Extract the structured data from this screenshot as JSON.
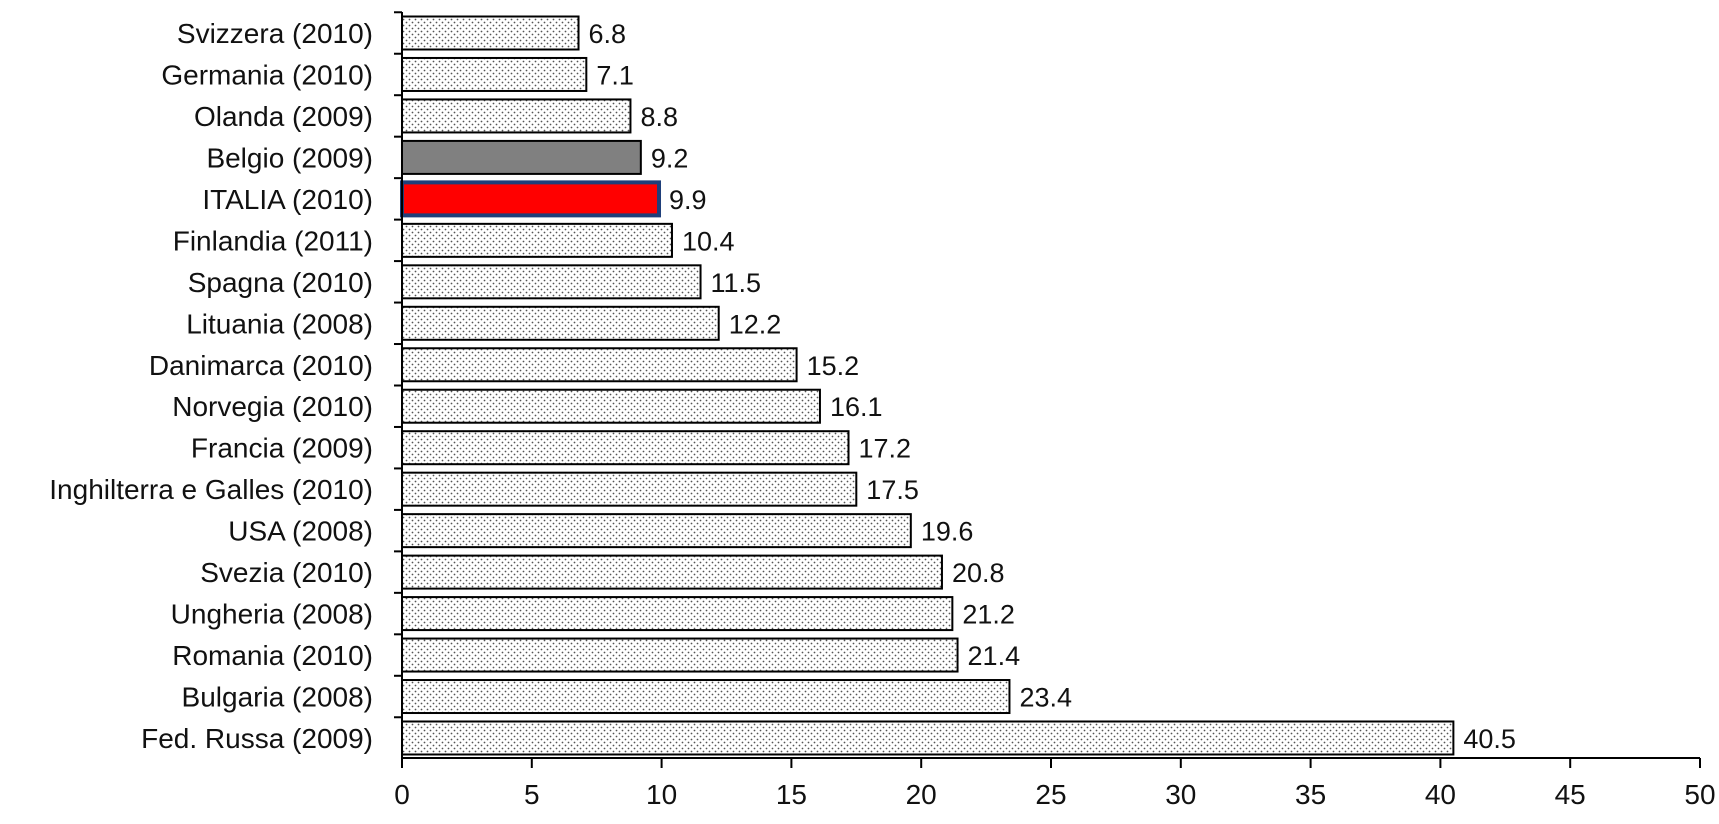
{
  "chart_data": {
    "type": "bar",
    "orientation": "horizontal",
    "title": "",
    "xlabel": "",
    "ylabel": "",
    "xlim": [
      0,
      50
    ],
    "x_ticks": [
      0,
      5,
      10,
      15,
      20,
      25,
      30,
      35,
      40,
      45,
      50
    ],
    "grid": false,
    "categories": [
      "Svizzera (2010)",
      "Germania (2010)",
      "Olanda (2009)",
      "Belgio (2009)",
      "ITALIA (2010)",
      "Finlandia (2011)",
      "Spagna (2010)",
      "Lituania (2008)",
      "Danimarca (2010)",
      "Norvegia (2010)",
      "Francia (2009)",
      "Inghilterra e Galles (2010)",
      "USA (2008)",
      "Svezia (2010)",
      "Ungheria (2008)",
      "Romania (2010)",
      "Bulgaria (2008)",
      "Fed. Russa (2009)"
    ],
    "values": [
      6.8,
      7.1,
      8.8,
      9.2,
      9.9,
      10.4,
      11.5,
      12.2,
      15.2,
      16.1,
      17.2,
      17.5,
      19.6,
      20.8,
      21.2,
      21.4,
      23.4,
      40.5
    ],
    "value_labels": [
      "6.8",
      "7.1",
      "8.8",
      "9.2",
      "9.9",
      "10.4",
      "11.5",
      "12.2",
      "15.2",
      "16.1",
      "17.2",
      "17.5",
      "19.6",
      "20.8",
      "21.2",
      "21.4",
      "23.4",
      "40.5"
    ],
    "styles": [
      "dotted",
      "dotted",
      "dotted",
      "gray",
      "red",
      "dotted",
      "dotted",
      "dotted",
      "dotted",
      "dotted",
      "dotted",
      "dotted",
      "dotted",
      "dotted",
      "dotted",
      "dotted",
      "dotted",
      "dotted"
    ],
    "colors": {
      "highlight_fill": "#ff0000",
      "highlight_border": "#1f3f7a",
      "gray_fill": "#808080",
      "dot_fill": "#ffffff",
      "dot_color": "#555555",
      "bar_border": "#000000"
    }
  }
}
